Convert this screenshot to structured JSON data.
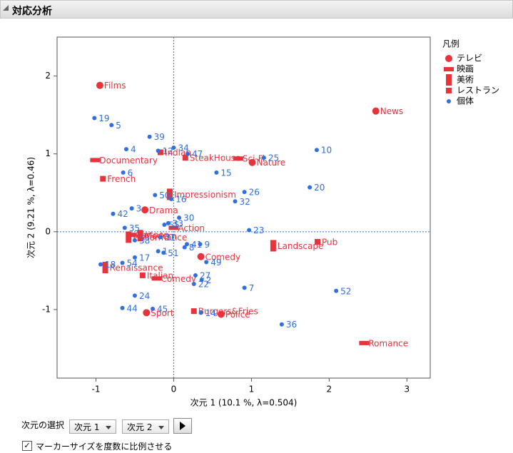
{
  "header": {
    "title": "対応分析"
  },
  "controls": {
    "dimension_label": "次元の選択",
    "dim_x": "次元 1",
    "dim_y": "次元 2",
    "checkbox_label": "マーカーサイズを度数に比例させる"
  },
  "chart_data": {
    "type": "scatter",
    "x_label": "次元 1  (10.1 %, λ=0.504)",
    "y_label": "次元 2  (9.21 %, λ=0.46)",
    "xlim": [
      -1.5,
      3.3
    ],
    "ylim": [
      -1.88,
      2.5
    ],
    "xticks": [
      -1,
      0,
      1,
      2,
      3
    ],
    "yticks": [
      -1,
      0,
      1,
      2
    ],
    "legend_title": "凡例",
    "legend": "right",
    "series": [
      {
        "name": "テレビ",
        "color": "#e8323c",
        "marker": "circle",
        "x": [
          -0.95,
          2.6,
          -0.37,
          0.35,
          -0.35,
          1.01,
          0.61
        ],
        "y": [
          1.88,
          1.55,
          0.28,
          -0.32,
          -1.04,
          0.89,
          -1.06
        ],
        "labels": [
          "Films",
          "News",
          "Drama",
          "Comedy",
          "Sport",
          "Nature",
          "Police"
        ]
      },
      {
        "name": "映画",
        "color": "#e8323c",
        "marker": "hbar",
        "x": [
          -1.01,
          0.83,
          0.0,
          2.45,
          -0.22,
          -0.55
        ],
        "y": [
          0.92,
          0.94,
          0.05,
          -1.43,
          -0.6,
          -0.04
        ],
        "labels": [
          "Documentary",
          "Sci-Fi",
          "Action",
          "Romance",
          "Comedy",
          "Cartoon"
        ]
      },
      {
        "name": "美術",
        "color": "#e8323c",
        "marker": "vbar",
        "x": [
          -0.05,
          1.28,
          -0.43,
          -0.58,
          -0.88
        ],
        "y": [
          0.48,
          -0.18,
          -0.05,
          -0.07,
          -0.46
        ],
        "labels": [
          "Impressionism",
          "Landscape",
          "Modern",
          "Performance",
          "Renaissance"
        ]
      },
      {
        "name": "レストラン",
        "color": "#e8323c",
        "marker": "square",
        "x": [
          -0.17,
          0.15,
          -0.91,
          1.85,
          -0.4,
          0.26
        ],
        "y": [
          1.02,
          0.95,
          0.68,
          -0.13,
          -0.56,
          -1.02
        ],
        "labels": [
          "Indian",
          "SteakHouse",
          "French",
          "Pub",
          "Italian",
          "Burgers&Fries"
        ]
      },
      {
        "name": "個体",
        "color": "#2f6fe0",
        "marker": "dot",
        "x": [
          -1.02,
          -0.8,
          -0.31,
          -0.61,
          -0.2,
          0.0,
          0.18,
          1.16,
          1.84,
          0.55,
          -0.65,
          1.75,
          0.91,
          0.79,
          -0.24,
          -0.03,
          -0.54,
          -0.78,
          0.07,
          -0.12,
          -0.07,
          -0.63,
          0.97,
          -0.17,
          -0.5,
          0.14,
          0.17,
          0.34,
          -0.2,
          -0.13,
          -0.5,
          -0.66,
          -0.94,
          0.42,
          0.28,
          0.36,
          0.26,
          0.91,
          2.09,
          -0.5,
          -0.66,
          -0.27,
          0.35,
          1.39
        ],
        "y": [
          1.46,
          1.37,
          1.22,
          1.06,
          1.04,
          1.08,
          1.0,
          0.95,
          1.05,
          0.76,
          0.76,
          0.57,
          0.51,
          0.39,
          0.47,
          0.42,
          0.3,
          0.23,
          0.18,
          0.09,
          0.11,
          0.05,
          0.02,
          -0.07,
          -0.11,
          -0.2,
          -0.16,
          -0.16,
          -0.25,
          -0.27,
          -0.33,
          -0.4,
          -0.42,
          -0.39,
          -0.56,
          -0.62,
          -0.67,
          -0.72,
          -0.76,
          -0.82,
          -0.98,
          -0.99,
          -1.04,
          -1.19
        ],
        "labels": [
          "19",
          "5",
          "39",
          "4",
          "12",
          "34",
          "47",
          "25",
          "10",
          "15",
          "6",
          "20",
          "26",
          "32",
          "50",
          "16",
          "3",
          "42",
          "30",
          "55",
          "33",
          "35",
          "23",
          "31",
          "38",
          "8",
          "41",
          "9",
          "1",
          "51",
          "17",
          "54",
          "18",
          "49",
          "27",
          "2",
          "22",
          "7",
          "52",
          "24",
          "44",
          "45",
          "14",
          "36"
        ]
      }
    ]
  }
}
